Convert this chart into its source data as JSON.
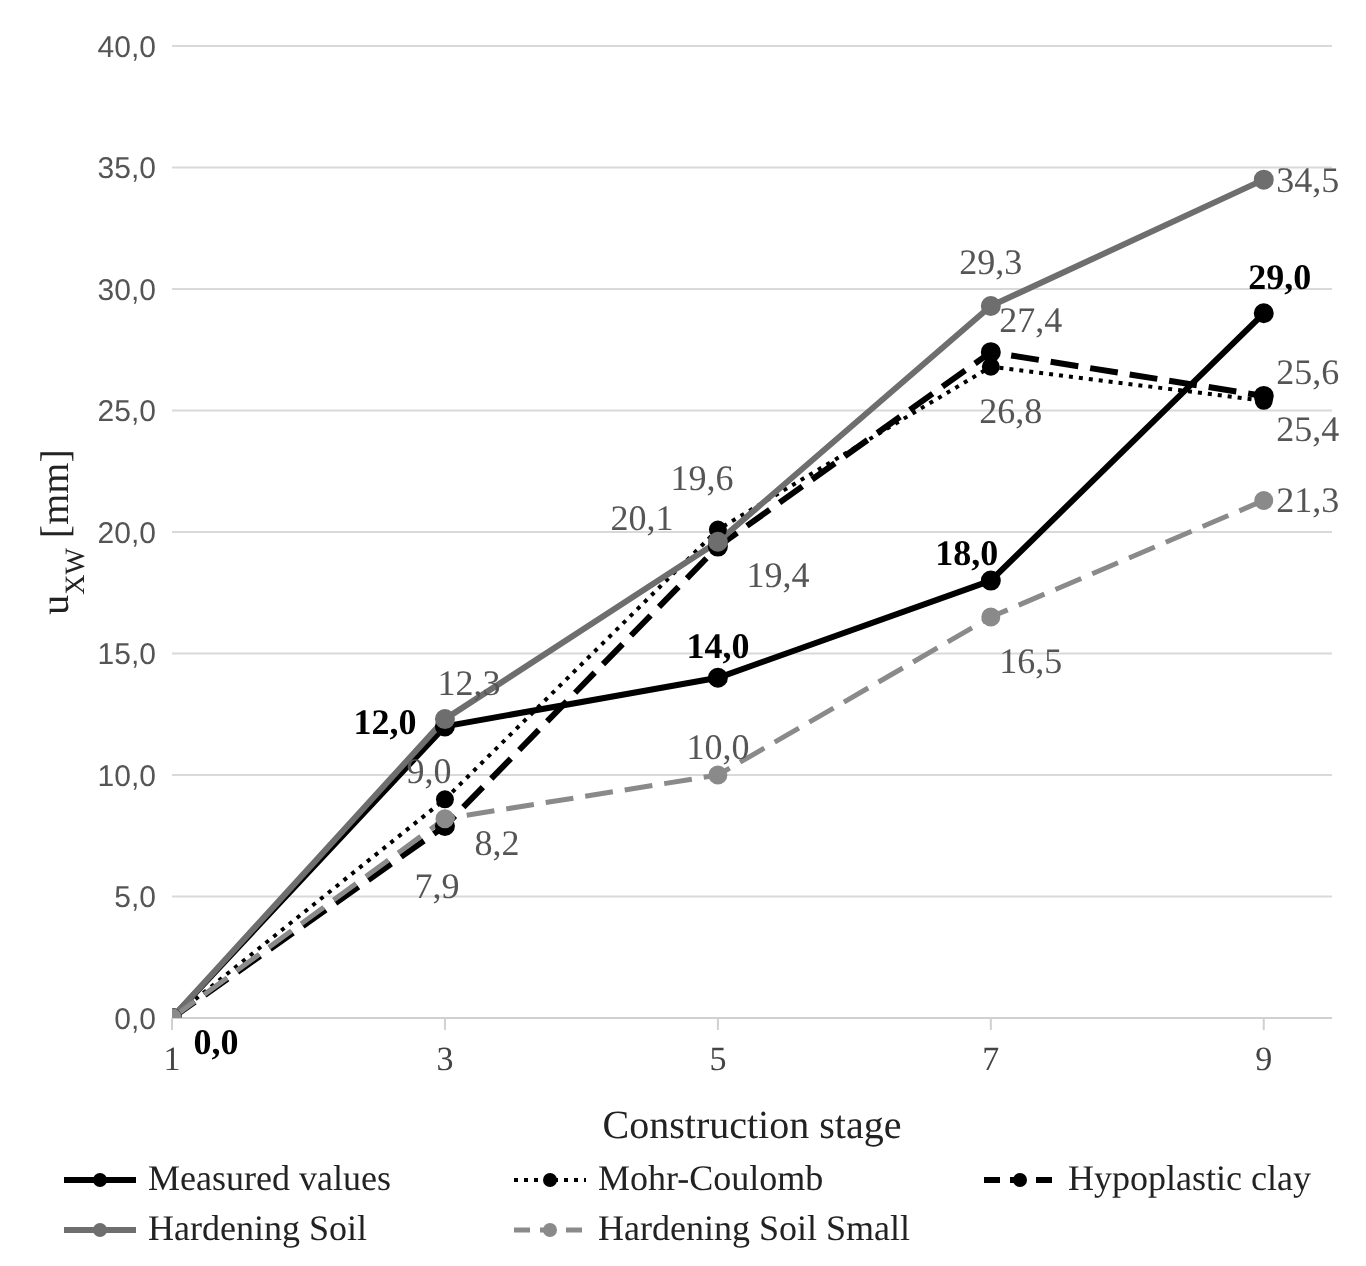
{
  "chart_data": {
    "type": "line",
    "xlabel": "Construction stage",
    "ylabel": "u$_{XW}$ [mm]",
    "x": [
      1,
      3,
      5,
      7,
      9
    ],
    "xlim": [
      1,
      9.5
    ],
    "xticks": [
      1,
      3,
      5,
      7,
      9
    ],
    "ylim": [
      0,
      40
    ],
    "yticks": [
      {
        "value": 0,
        "label": "0,0"
      },
      {
        "value": 5,
        "label": "5,0"
      },
      {
        "value": 10,
        "label": "10,0"
      },
      {
        "value": 15,
        "label": "15,0"
      },
      {
        "value": 20,
        "label": "20,0"
      },
      {
        "value": 25,
        "label": "25,0"
      },
      {
        "value": 30,
        "label": "30,0"
      },
      {
        "value": 35,
        "label": "35,0"
      },
      {
        "value": 40,
        "label": "40,0"
      }
    ],
    "grid": "y",
    "legend": "bottom",
    "marker": "circle",
    "series": [
      {
        "name": "Measured values",
        "color": "#000000",
        "line_style": "solid",
        "values": [
          0,
          12,
          14,
          18,
          29
        ],
        "value_labels": [
          "0,0",
          "12,0",
          "14,0",
          "18,0",
          "29,0"
        ]
      },
      {
        "name": "Mohr-Coulomb",
        "color": "#000000",
        "line_style": "dotted",
        "values": [
          0,
          9,
          20.1,
          26.8,
          25.4
        ],
        "value_labels": [
          null,
          "9,0",
          "20,1",
          "26,8",
          "25,4"
        ]
      },
      {
        "name": "Hypoplastic clay",
        "color": "#000000",
        "line_style": "dashed",
        "values": [
          0,
          7.9,
          19.4,
          27.4,
          25.6
        ],
        "value_labels": [
          null,
          "7,9",
          "19,4",
          "27,4",
          "25,6"
        ]
      },
      {
        "name": "Hardening Soil",
        "color": "#6e6e6e",
        "line_style": "solid",
        "values": [
          0,
          12.3,
          19.6,
          29.3,
          34.5
        ],
        "value_labels": [
          null,
          "12,3",
          "19,6",
          "29,3",
          "34,5"
        ]
      },
      {
        "name": "Hardening Soil Small",
        "color": "#8a8a8a",
        "line_style": "dashed",
        "values": [
          0,
          8.2,
          10,
          16.5,
          21.3
        ],
        "value_labels": [
          null,
          "8,2",
          "10,0",
          "16,5",
          "21,3"
        ]
      }
    ]
  }
}
